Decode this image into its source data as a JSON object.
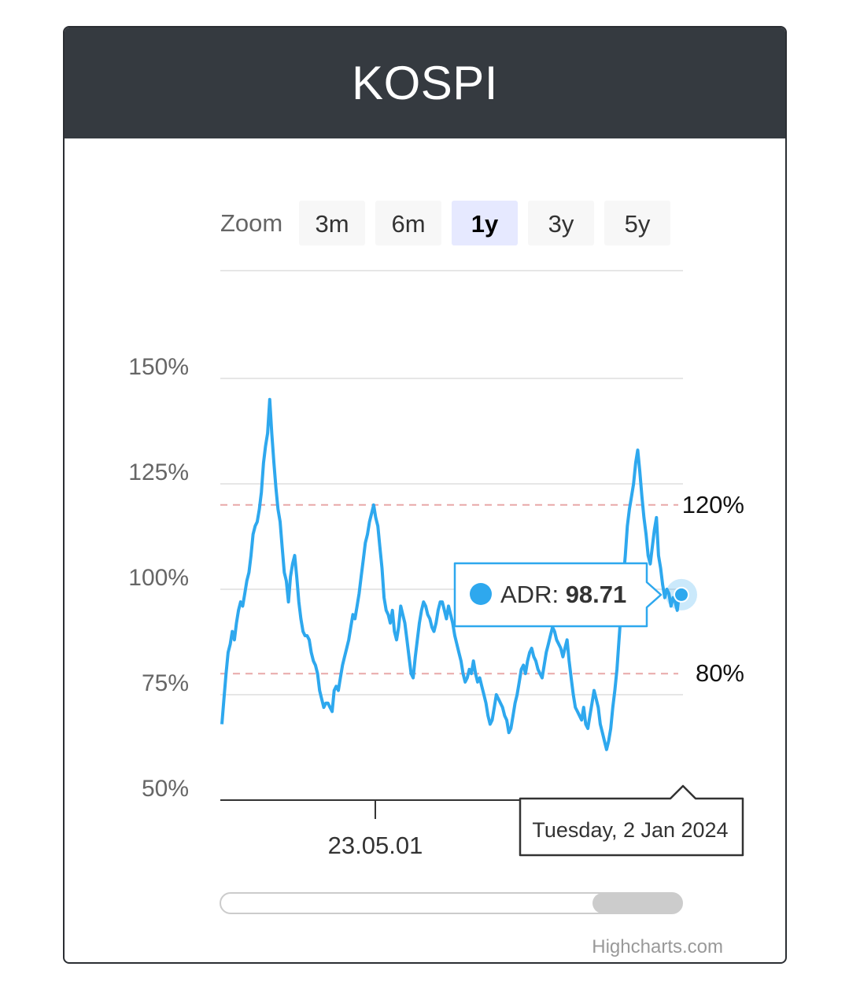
{
  "header": {
    "title": "KOSPI"
  },
  "zoom": {
    "label": "Zoom",
    "buttons": [
      {
        "label": "3m",
        "active": false
      },
      {
        "label": "6m",
        "active": false
      },
      {
        "label": "1y",
        "active": true
      },
      {
        "label": "3y",
        "active": false
      },
      {
        "label": "5y",
        "active": false
      }
    ]
  },
  "chart_data": {
    "type": "line",
    "title": "KOSPI",
    "ylabel": "",
    "xlabel": "",
    "ylim": [
      50,
      150
    ],
    "y_ticks": [
      "50%",
      "75%",
      "100%",
      "125%",
      "150%"
    ],
    "y_tick_values": [
      50,
      75,
      100,
      125,
      150
    ],
    "x_tick_labels": [
      "23.05.01"
    ],
    "x_tick_positions": [
      0.335
    ],
    "plot_lines": [
      {
        "value": 120,
        "label": "120%",
        "color": "#e8a8a8"
      },
      {
        "value": 80,
        "label": "80%",
        "color": "#e8a8a8"
      }
    ],
    "series": [
      {
        "name": "ADR",
        "color": "#2ea8ee",
        "values": [
          68,
          74,
          80,
          85,
          87,
          90,
          88,
          92,
          95,
          97,
          96,
          99,
          102,
          104,
          108,
          113,
          115,
          116,
          119,
          123,
          130,
          134,
          137,
          145,
          137,
          130,
          124,
          119,
          116,
          110,
          104,
          102,
          97,
          103,
          106,
          108,
          103,
          97,
          93,
          90,
          89,
          89,
          88,
          85,
          83,
          82,
          80,
          76,
          74,
          72,
          73,
          73,
          72,
          71,
          76,
          77,
          76,
          79,
          82,
          84,
          86,
          88,
          91,
          94,
          93,
          96,
          99,
          103,
          107,
          111,
          113,
          116,
          118,
          120,
          117,
          115,
          110,
          105,
          98,
          95,
          94,
          92,
          95,
          90,
          88,
          91,
          96,
          94,
          92,
          88,
          84,
          80,
          79,
          84,
          88,
          92,
          95,
          97,
          96,
          94,
          93,
          91,
          90,
          92,
          95,
          97,
          97,
          95,
          93,
          96,
          94,
          92,
          89,
          87,
          85,
          83,
          80,
          78,
          79,
          81,
          80,
          83,
          80,
          78,
          79,
          77,
          75,
          73,
          70,
          68,
          69,
          72,
          75,
          74,
          73,
          72,
          70,
          69,
          66,
          67,
          70,
          73,
          75,
          78,
          81,
          82,
          80,
          83,
          85,
          86,
          84,
          83,
          81,
          80,
          79,
          82,
          85,
          87,
          89,
          91,
          90,
          88,
          87,
          86,
          84,
          86,
          88,
          83,
          79,
          75,
          72,
          71,
          70,
          69,
          72,
          68,
          67,
          70,
          73,
          76,
          74,
          72,
          68,
          66,
          64,
          62,
          64,
          67,
          72,
          76,
          81,
          88,
          95,
          102,
          108,
          115,
          119,
          122,
          125,
          130,
          133,
          128,
          122,
          117,
          113,
          108,
          106,
          110,
          114,
          117,
          108,
          105,
          101,
          98,
          100,
          99,
          96,
          98,
          97,
          95,
          99,
          98.71
        ]
      }
    ],
    "tooltip": {
      "series_name": "ADR",
      "value_label": "98.71",
      "date": "Tuesday, 2 Jan 2024"
    },
    "credits": "Highcharts.com"
  }
}
